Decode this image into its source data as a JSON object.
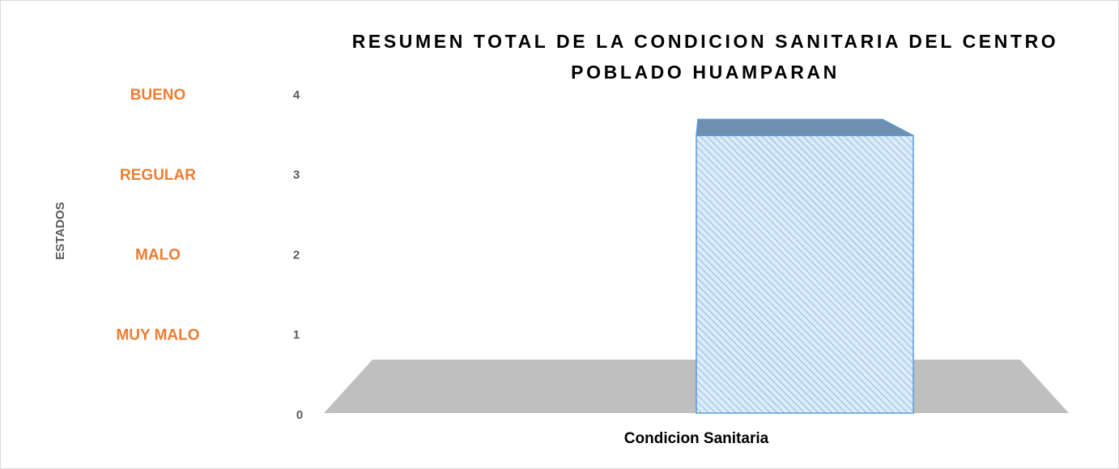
{
  "chart_data": {
    "type": "bar3d",
    "title": "RESUMEN TOTAL DE LA CONDICION SANITARIA DEL CENTRO POBLADO HUAMPARAN",
    "ylabel": "ESTADOS",
    "categories": [
      "Condicion Sanitaria"
    ],
    "values": [
      3.5
    ],
    "color": "#9dc3e6",
    "ylim": [
      0,
      4
    ],
    "yticks": [
      0,
      1,
      2,
      3,
      4
    ],
    "grid": false,
    "annotations": [
      {
        "text": "BUENO",
        "y": 4
      },
      {
        "text": "REGULAR",
        "y": 3
      },
      {
        "text": "MALO",
        "y": 2
      },
      {
        "text": "MUY MALO",
        "y": 1
      }
    ]
  }
}
